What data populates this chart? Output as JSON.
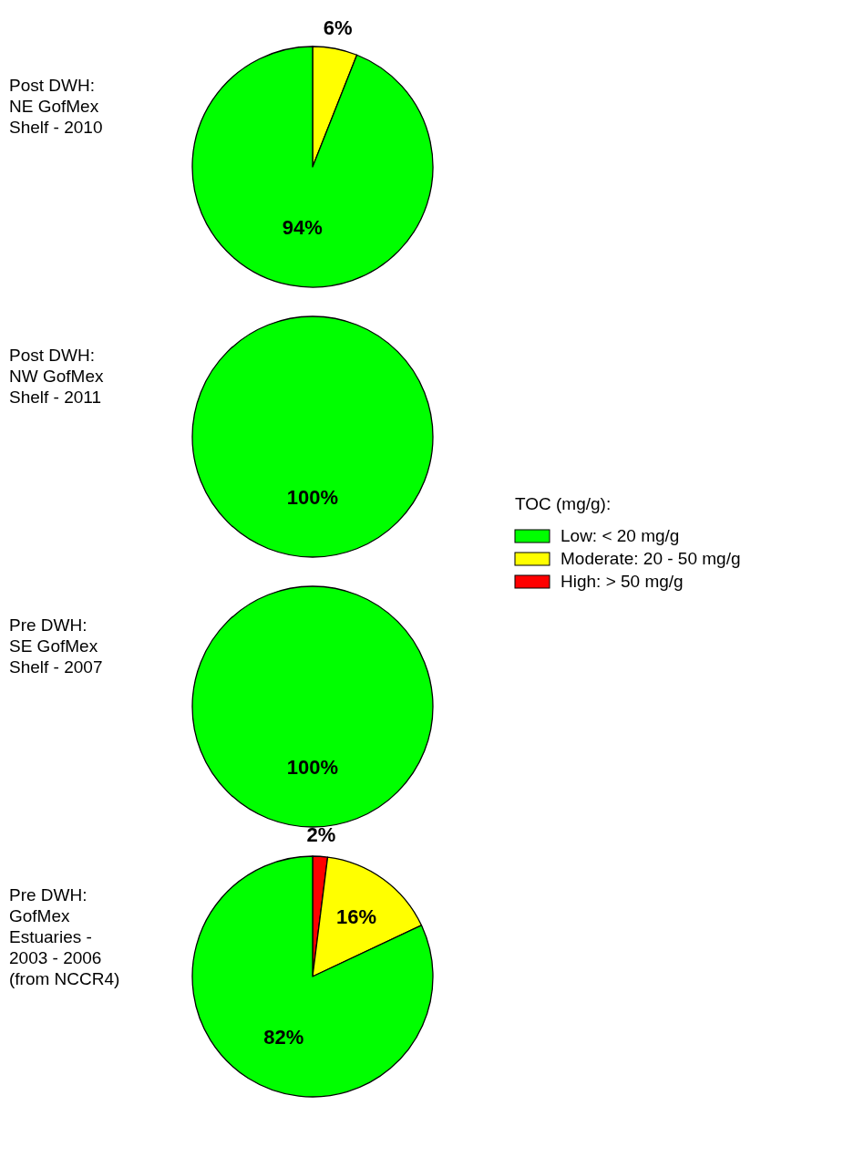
{
  "chart_data": [
    {
      "type": "pie",
      "title": "Post DWH:\nNE GofMex\nShelf - 2010",
      "categories": [
        null,
        null,
        null
      ],
      "values": [
        94,
        6,
        0
      ],
      "colors": [
        "#00ff00",
        "#ffff00",
        "#ff0000"
      ],
      "value_labels": [
        "94%",
        "6%",
        null
      ]
    },
    {
      "type": "pie",
      "title": "Post DWH:\nNW GofMex\nShelf - 2011",
      "categories": [
        "Low: < 20 mg/g",
        "Moderate: 20 - 50 mg/g",
        "High: > 50 mg/g"
      ],
      "values": [
        100,
        0,
        0
      ],
      "colors": [
        "#00ff00",
        "#ffff00",
        "#ff0000"
      ],
      "value_labels": [
        "100%",
        null,
        null
      ],
      "legend": "right",
      "legend_title": "TOC (mg/g):"
    },
    {
      "type": "pie",
      "title": "Pre DWH:\nSE GofMex\nShelf - 2007",
      "categories": [
        null,
        null,
        null
      ],
      "values": [
        100,
        0,
        0
      ],
      "colors": [
        "#00ff00",
        "#ffff00",
        "#ff0000"
      ],
      "value_labels": [
        "100%",
        null,
        null
      ]
    },
    {
      "type": "pie",
      "title": "Pre DWH:\nGofMex\nEstuaries -\n2003 - 2006\n(from NCCR4)",
      "categories": [
        null,
        null,
        null
      ],
      "values": [
        82,
        16,
        2
      ],
      "colors": [
        "#00ff00",
        "#ffff00",
        "#ff0000"
      ],
      "value_labels": [
        "82%",
        "16%",
        "2%"
      ]
    }
  ]
}
